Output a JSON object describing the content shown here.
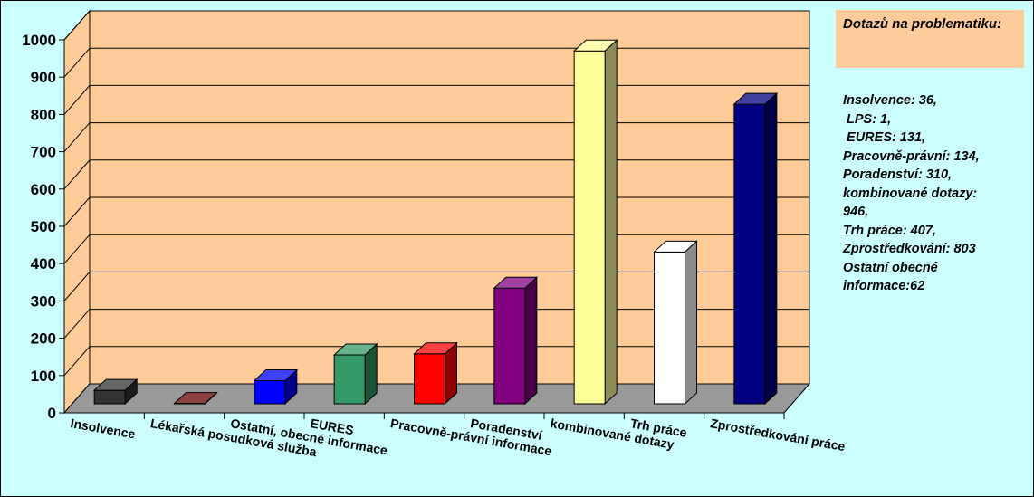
{
  "chart_data": {
    "type": "bar",
    "categories": [
      "Insolvence",
      "Lékařská posudková služba",
      "Ostatní, obecné informace",
      "EURES",
      "Pracovně-právní informace",
      "Poradenství",
      "kombinované dotazy",
      "Trh práce",
      "Zprostředkování práce"
    ],
    "values": [
      36,
      1,
      62,
      131,
      134,
      310,
      946,
      407,
      803
    ],
    "ylim": [
      0,
      1000
    ],
    "yticks": [
      "0",
      "100",
      "200",
      "300",
      "400",
      "500",
      "600",
      "700",
      "800",
      "900",
      "1000"
    ],
    "grid": true,
    "colors": {
      "wall": "#ffcc99",
      "floor": "#999999",
      "background": "#ccffff",
      "bars": [
        "#333333",
        "#660000",
        "#0000ff",
        "#339966",
        "#ff0000",
        "#800080",
        "#ffff99",
        "#ffffff",
        "#000080"
      ]
    },
    "legend": {
      "title": "Dotazů na problematiku:",
      "lines": [
        "Insolvence: 36,",
        " LPS: 1,",
        " EURES: 131,",
        "Pracovně-právní: 134,",
        "Poradenství: 310,",
        "kombinované dotazy:",
        "946,",
        "Trh práce: 407,",
        "Zprostředkování: 803",
        "Ostatní obecné",
        "informace:62"
      ]
    }
  }
}
